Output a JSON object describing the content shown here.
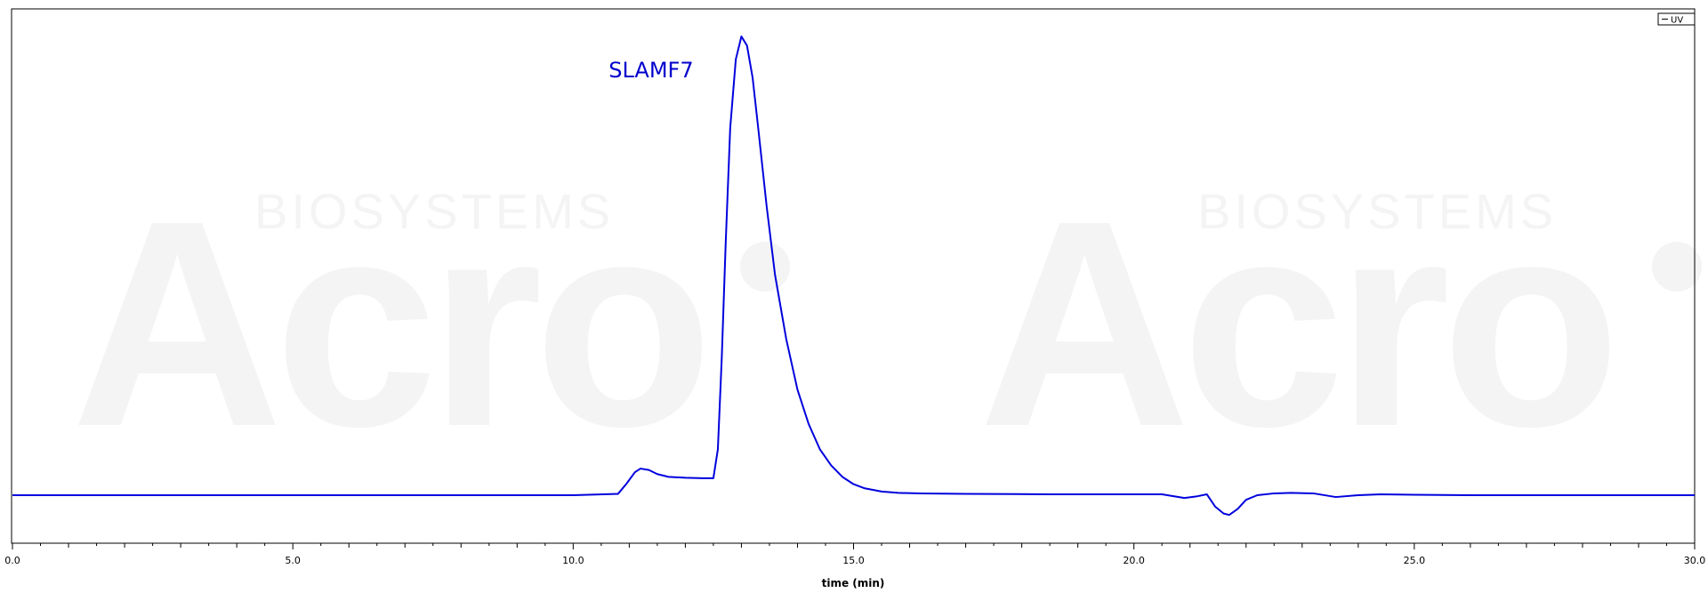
{
  "chart_data": {
    "type": "line",
    "title": "",
    "xlabel": "time (min)",
    "ylabel": "",
    "xlim": [
      0,
      30
    ],
    "ylim": [
      -0.12,
      1.0
    ],
    "x_ticks": [
      "0.0",
      "5.0",
      "10.0",
      "15.0",
      "20.0",
      "25.0",
      "30.0"
    ],
    "grid": false,
    "legend": {
      "position": "top-right",
      "entries": [
        "UV"
      ]
    },
    "annotations": [
      {
        "text": "SLAMF7",
        "x": 11.3,
        "y": 0.95
      }
    ],
    "watermark": {
      "wordmark": "Acro",
      "tagline": "BIOSYSTEMS"
    },
    "colors": {
      "series": "#0000dd",
      "annotation": "#0000cc",
      "axis": "#000000"
    },
    "series": [
      {
        "name": "UV",
        "x": [
          0.0,
          5.0,
          8.7,
          10.0,
          10.8,
          10.95,
          11.1,
          11.2,
          11.35,
          11.5,
          11.7,
          12.0,
          12.3,
          12.5,
          12.58,
          12.65,
          12.72,
          12.8,
          12.9,
          13.0,
          13.1,
          13.2,
          13.3,
          13.45,
          13.6,
          13.8,
          14.0,
          14.2,
          14.4,
          14.6,
          14.8,
          15.0,
          15.2,
          15.5,
          15.8,
          16.2,
          17.0,
          18.5,
          19.5,
          20.5,
          20.9,
          21.1,
          21.3,
          21.45,
          21.6,
          21.7,
          21.85,
          22.0,
          22.2,
          22.5,
          22.8,
          23.2,
          23.6,
          24.0,
          24.4,
          25.0,
          26.0,
          27.0,
          28.0,
          29.0,
          30.0
        ],
        "y": [
          0.0,
          0.0,
          0.0,
          0.0,
          0.003,
          0.025,
          0.05,
          0.058,
          0.055,
          0.046,
          0.04,
          0.038,
          0.037,
          0.037,
          0.1,
          0.3,
          0.55,
          0.8,
          0.95,
          1.0,
          0.98,
          0.91,
          0.8,
          0.63,
          0.48,
          0.34,
          0.23,
          0.155,
          0.1,
          0.065,
          0.04,
          0.024,
          0.015,
          0.008,
          0.005,
          0.004,
          0.003,
          0.002,
          0.002,
          0.002,
          -0.006,
          -0.003,
          0.002,
          -0.025,
          -0.04,
          -0.043,
          -0.03,
          -0.01,
          0.0,
          0.004,
          0.005,
          0.004,
          -0.004,
          0.0,
          0.002,
          0.001,
          0.0,
          0.0,
          0.0,
          0.0,
          0.0
        ]
      }
    ]
  }
}
